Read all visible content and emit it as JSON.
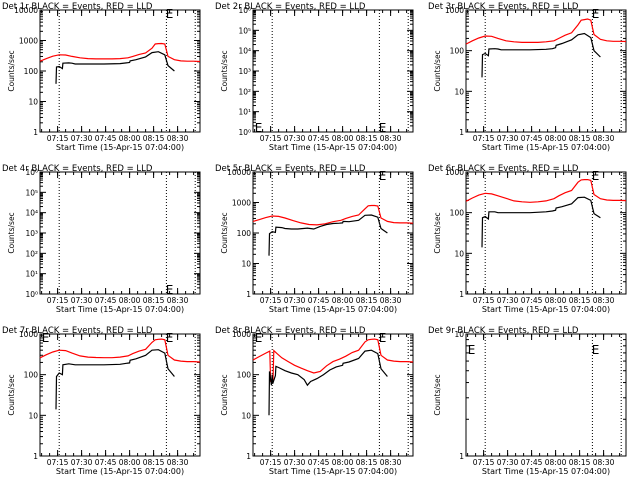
{
  "figure": {
    "xtick_labels": [
      "07:15",
      "07:30",
      "07:45",
      "08:00",
      "08:15",
      "08:30"
    ],
    "colors": {
      "events": "#000000",
      "lld": "#ff0000",
      "axis": "#000000"
    }
  },
  "chart_data": [
    {
      "type": "line",
      "title": "Det 1r BLACK = Events, RED = LLD",
      "xlabel": "Start Time (15-Apr-15 07:04:00)",
      "ylabel": "Counts/sec",
      "yscale": "log",
      "ylim": [
        1,
        10000
      ],
      "ytick_labels": [
        "1",
        "10",
        "100",
        "1000",
        "10000"
      ],
      "xlim_minutes": [
        0,
        100
      ],
      "dotted_lines_minutes": [
        12,
        79,
        97
      ],
      "markers": [
        {
          "text": "E",
          "x": 78,
          "y": 8000
        }
      ],
      "series": [
        {
          "color": "#ff0000",
          "x": [
            0,
            4,
            8,
            12,
            16,
            20,
            25,
            30,
            35,
            40,
            45,
            50,
            55,
            58,
            62,
            66,
            70,
            72,
            74,
            76,
            78,
            80,
            84,
            88,
            92,
            96,
            100
          ],
          "values": [
            210,
            255,
            305,
            340,
            335,
            300,
            270,
            255,
            250,
            250,
            250,
            255,
            270,
            300,
            350,
            390,
            560,
            770,
            790,
            800,
            770,
            300,
            235,
            215,
            210,
            210,
            205
          ]
        },
        {
          "color": "#000000",
          "x": [
            10,
            10.3,
            12,
            14,
            14.3,
            18,
            20,
            22,
            30,
            40,
            50,
            54,
            56,
            56.3,
            60,
            66,
            70,
            74,
            78,
            80,
            84
          ],
          "values": [
            38,
            135,
            140,
            120,
            180,
            185,
            180,
            170,
            170,
            170,
            175,
            185,
            190,
            215,
            235,
            290,
            400,
            430,
            340,
            150,
            100
          ]
        }
      ]
    },
    {
      "type": "line",
      "title": "Det 2r BLACK = Events, RED = LLD",
      "xlabel": "Start Time (15-Apr-15 07:04:00)",
      "ylabel": "Counts/sec",
      "yscale": "log",
      "ylim": [
        1,
        1000000
      ],
      "ytick_labels": [
        "10⁰",
        "10¹",
        "10²",
        "10³",
        "10⁴",
        "10⁵",
        "10⁶"
      ],
      "xlim_minutes": [
        0,
        100
      ],
      "dotted_lines_minutes": [
        12,
        79,
        97
      ],
      "markers": [
        {
          "text": "E",
          "x": 0.5,
          "y": 1.8
        },
        {
          "text": "E",
          "x": 78,
          "y": 1.8
        }
      ],
      "series": []
    },
    {
      "type": "line",
      "title": "Det 3r BLACK = Events, RED = LLD",
      "xlabel": "Start Time (15-Apr-15 07:04:00)",
      "ylabel": "Counts/sec",
      "yscale": "log",
      "ylim": [
        1,
        1000
      ],
      "ytick_labels": [
        "1",
        "10",
        "100",
        "1000"
      ],
      "xlim_minutes": [
        0,
        100
      ],
      "dotted_lines_minutes": [
        12,
        79,
        97
      ],
      "markers": [
        {
          "text": "E",
          "x": 78,
          "y": 850
        }
      ],
      "series": [
        {
          "color": "#ff0000",
          "x": [
            0,
            4,
            8,
            12,
            16,
            20,
            25,
            30,
            35,
            40,
            45,
            50,
            55,
            58,
            62,
            66,
            70,
            72,
            74,
            76,
            78,
            80,
            84,
            88,
            92,
            96,
            100
          ],
          "values": [
            145,
            175,
            205,
            230,
            225,
            200,
            175,
            165,
            160,
            160,
            160,
            165,
            175,
            200,
            240,
            275,
            430,
            560,
            580,
            600,
            560,
            250,
            190,
            175,
            170,
            170,
            168
          ]
        },
        {
          "color": "#000000",
          "x": [
            10,
            10.3,
            12,
            14,
            14.3,
            18,
            20,
            22,
            30,
            40,
            50,
            54,
            56,
            56.3,
            60,
            66,
            70,
            74,
            78,
            80,
            84
          ],
          "values": [
            22,
            80,
            85,
            75,
            110,
            112,
            110,
            105,
            105,
            105,
            108,
            112,
            118,
            135,
            150,
            185,
            245,
            265,
            210,
            100,
            70
          ]
        }
      ]
    },
    {
      "type": "line",
      "title": "Det 4r BLACK = Events, RED = LLD",
      "xlabel": "Start Time (15-Apr-15 07:04:00)",
      "ylabel": "Counts/sec",
      "yscale": "log",
      "ylim": [
        1,
        1000000
      ],
      "ytick_labels": [
        "10⁰",
        "10¹",
        "10²",
        "10³",
        "10⁴",
        "10⁵",
        "10⁶"
      ],
      "xlim_minutes": [
        0,
        100
      ],
      "dotted_lines_minutes": [
        12,
        79,
        97
      ],
      "markers": [
        {
          "text": "E",
          "x": 78,
          "y": 1.8
        }
      ],
      "series": []
    },
    {
      "type": "line",
      "title": "Det 5r BLACK = Events, RED = LLD",
      "xlabel": "Start Time (15-Apr-15 07:04:00)",
      "ylabel": "Counts/sec",
      "yscale": "log",
      "ylim": [
        1,
        10000
      ],
      "ytick_labels": [
        "1",
        "10",
        "100",
        "1000",
        "10000"
      ],
      "xlim_minutes": [
        0,
        100
      ],
      "dotted_lines_minutes": [
        12,
        79,
        97
      ],
      "markers": [
        {
          "text": "E",
          "x": 78,
          "y": 8000
        }
      ],
      "series": [
        {
          "color": "#ff0000",
          "x": [
            0,
            4,
            8,
            12,
            16,
            20,
            25,
            30,
            35,
            40,
            45,
            50,
            55,
            58,
            62,
            66,
            70,
            72,
            74,
            76,
            78,
            80,
            84,
            88,
            92,
            96,
            100
          ],
          "values": [
            240,
            275,
            320,
            360,
            350,
            310,
            255,
            215,
            190,
            185,
            200,
            235,
            260,
            300,
            350,
            390,
            620,
            780,
            800,
            800,
            770,
            310,
            240,
            220,
            215,
            215,
            210
          ]
        },
        {
          "color": "#000000",
          "x": [
            10,
            10.3,
            12,
            14,
            14.3,
            18,
            20,
            24,
            28,
            34,
            38,
            42,
            46,
            50,
            54,
            56,
            56.3,
            60,
            66,
            70,
            74,
            78,
            80,
            84
          ],
          "values": [
            18,
            95,
            110,
            105,
            155,
            150,
            140,
            135,
            135,
            145,
            135,
            165,
            190,
            205,
            210,
            215,
            240,
            235,
            260,
            380,
            390,
            330,
            140,
            100
          ]
        }
      ]
    },
    {
      "type": "line",
      "title": "Det 6r BLACK = Events, RED = LLD",
      "xlabel": "Start Time (15-Apr-15 07:04:00)",
      "ylabel": "Counts/sec",
      "yscale": "log",
      "ylim": [
        1,
        1000
      ],
      "ytick_labels": [
        "1",
        "10",
        "100",
        "1000"
      ],
      "xlim_minutes": [
        0,
        100
      ],
      "dotted_lines_minutes": [
        12,
        79,
        97
      ],
      "markers": [
        {
          "text": "E",
          "x": 78,
          "y": 850
        }
      ],
      "series": [
        {
          "color": "#ff0000",
          "x": [
            0,
            4,
            8,
            12,
            16,
            20,
            25,
            30,
            35,
            40,
            45,
            50,
            55,
            58,
            62,
            66,
            70,
            72,
            74,
            76,
            78,
            80,
            84,
            88,
            92,
            96,
            100
          ],
          "values": [
            190,
            230,
            270,
            300,
            290,
            260,
            225,
            195,
            185,
            180,
            185,
            195,
            220,
            260,
            310,
            350,
            560,
            640,
            650,
            650,
            620,
            280,
            220,
            205,
            200,
            200,
            198
          ]
        },
        {
          "color": "#000000",
          "x": [
            10,
            10.3,
            12,
            14,
            14.3,
            18,
            20,
            22,
            30,
            40,
            50,
            54,
            56,
            56.3,
            60,
            66,
            70,
            74,
            78,
            80,
            84
          ],
          "values": [
            14,
            75,
            80,
            70,
            105,
            105,
            100,
            100,
            100,
            100,
            105,
            110,
            115,
            130,
            140,
            165,
            235,
            240,
            200,
            95,
            75
          ]
        }
      ]
    },
    {
      "type": "line",
      "title": "Det 7r BLACK = Events, RED = LLD",
      "xlabel": "Start Time (15-Apr-15 07:04:00)",
      "ylabel": "Counts/sec",
      "yscale": "log",
      "ylim": [
        1,
        1000
      ],
      "ytick_labels": [
        "1",
        "10",
        "100",
        "1000"
      ],
      "xlim_minutes": [
        0,
        100
      ],
      "dotted_lines_minutes": [
        12,
        79,
        97
      ],
      "markers": [
        {
          "text": "E",
          "x": 0.5,
          "y": 850
        },
        {
          "text": "E",
          "x": 78,
          "y": 850
        }
      ],
      "series": [
        {
          "color": "#ff0000",
          "x": [
            0,
            4,
            8,
            12,
            16,
            20,
            25,
            30,
            35,
            40,
            45,
            50,
            55,
            58,
            62,
            66,
            70,
            72,
            74,
            76,
            78,
            80,
            84,
            88,
            92,
            96,
            100
          ],
          "values": [
            260,
            310,
            360,
            400,
            390,
            340,
            290,
            270,
            265,
            262,
            262,
            270,
            290,
            330,
            380,
            420,
            620,
            720,
            740,
            750,
            720,
            300,
            230,
            215,
            210,
            210,
            205
          ]
        },
        {
          "color": "#000000",
          "x": [
            10,
            10.3,
            12,
            14,
            14.3,
            18,
            20,
            22,
            30,
            40,
            50,
            54,
            56,
            56.3,
            60,
            66,
            70,
            74,
            78,
            80,
            84
          ],
          "values": [
            14,
            90,
            110,
            100,
            175,
            185,
            180,
            175,
            175,
            175,
            180,
            190,
            195,
            225,
            245,
            300,
            400,
            410,
            340,
            140,
            90
          ]
        }
      ]
    },
    {
      "type": "line",
      "title": "Det 8r BLACK = Events, RED = LLD",
      "xlabel": "Start Time (15-Apr-15 07:04:00)",
      "ylabel": "Counts/sec",
      "yscale": "log",
      "ylim": [
        1,
        1000
      ],
      "ytick_labels": [
        "1",
        "10",
        "100",
        "1000"
      ],
      "xlim_minutes": [
        0,
        100
      ],
      "dotted_lines_minutes": [
        12,
        79,
        97
      ],
      "markers": [
        {
          "text": "E",
          "x": 0.5,
          "y": 850
        },
        {
          "text": "E",
          "x": 78,
          "y": 850
        }
      ],
      "series": [
        {
          "color": "#ff0000",
          "x": [
            0,
            4,
            8,
            10.5,
            11,
            12.5,
            13,
            15,
            18,
            22,
            26,
            30,
            34,
            38,
            42,
            46,
            50,
            54,
            58,
            62,
            66,
            70,
            72,
            74,
            76,
            78,
            80,
            84,
            88,
            92,
            96,
            100
          ],
          "values": [
            230,
            280,
            340,
            380,
            70,
            75,
            390,
            330,
            260,
            210,
            170,
            145,
            125,
            110,
            120,
            165,
            210,
            240,
            285,
            350,
            400,
            640,
            720,
            740,
            750,
            720,
            300,
            230,
            215,
            210,
            210,
            205
          ]
        },
        {
          "color": "#000000",
          "x": [
            10,
            10.3,
            11.5,
            12,
            12.3,
            14,
            14.3,
            16,
            20,
            24,
            28,
            32,
            34,
            36,
            40,
            44,
            48,
            52,
            56,
            56.3,
            60,
            66,
            70,
            74,
            78,
            80,
            84
          ],
          "values": [
            10,
            120,
            55,
            100,
            60,
            95,
            160,
            150,
            125,
            110,
            100,
            75,
            55,
            68,
            80,
            100,
            130,
            155,
            170,
            190,
            205,
            250,
            380,
            400,
            330,
            140,
            90
          ]
        }
      ]
    },
    {
      "type": "line",
      "title": "Det 9r BLACK = Events, RED = LLD",
      "xlabel": "Start Time (15-Apr-15 07:04:00)",
      "ylabel": "Counts/sec",
      "yscale": "log",
      "ylim": [
        1,
        10
      ],
      "ytick_labels": [
        "1",
        "10"
      ],
      "xlim_minutes": [
        0,
        100
      ],
      "dotted_lines_minutes": [
        12,
        79,
        97
      ],
      "markers": [
        {
          "text": "E",
          "x": 0.5,
          "y": 7.5
        },
        {
          "text": "E",
          "x": 78,
          "y": 7.5
        }
      ],
      "series": []
    }
  ]
}
